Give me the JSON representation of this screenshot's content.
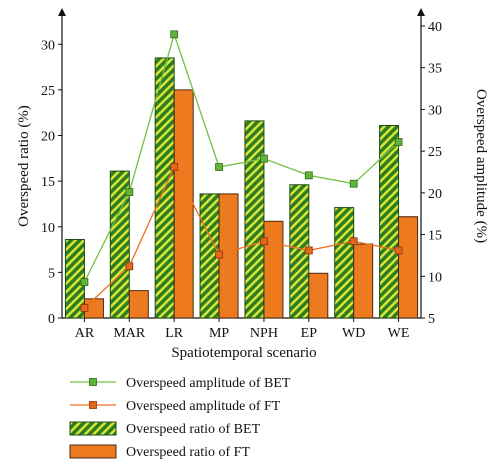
{
  "chart_data": {
    "type": "bar",
    "categories": [
      "AR",
      "MAR",
      "LR",
      "MP",
      "NPH",
      "EP",
      "WD",
      "WE"
    ],
    "xlabel": "Spatiotemporal scenario",
    "ylabel": "Overspeed ratio (%)",
    "y2label": "Overspeed amplitude (%)",
    "ylim": [
      0,
      32
    ],
    "y2lim": [
      5,
      40
    ],
    "yticks": [
      0,
      5,
      10,
      15,
      20,
      25,
      30
    ],
    "y2ticks": [
      5,
      10,
      15,
      20,
      25,
      30,
      35,
      40
    ],
    "bar_series": [
      {
        "name": "Overspeed ratio of BET",
        "values": [
          8.6,
          16.1,
          28.5,
          13.6,
          21.6,
          14.6,
          12.1,
          21.1
        ],
        "color": "#2e7d32",
        "pattern": "hatch-yellow"
      },
      {
        "name": "Overspeed ratio of FT",
        "values": [
          2.1,
          3.0,
          25.0,
          13.6,
          10.6,
          4.9,
          8.1,
          11.1
        ],
        "color": "#ee7a1f"
      }
    ],
    "line_series": [
      {
        "name": "Overspeed amplitude of BET",
        "values": [
          9.3,
          20.1,
          39.0,
          23.1,
          24.1,
          22.1,
          21.1,
          26.1
        ],
        "color": "#73c043",
        "axis": "right"
      },
      {
        "name": "Overspeed amplitude of FT",
        "values": [
          6.2,
          11.2,
          23.1,
          12.6,
          14.2,
          13.1,
          14.2,
          13.1
        ],
        "color": "#f0701f",
        "axis": "right"
      }
    ],
    "legend_placement": "bottom",
    "grid": false
  }
}
